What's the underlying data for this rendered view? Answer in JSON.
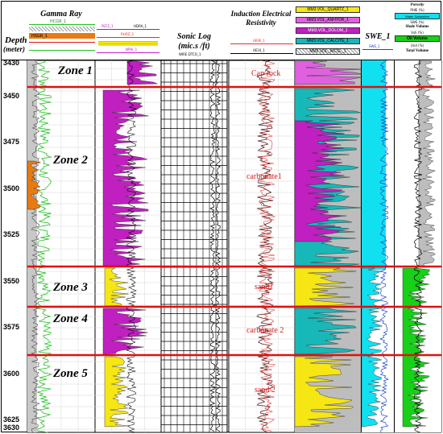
{
  "header": {
    "depth_label": "Depth",
    "depth_unit": "(meter)",
    "gamma_ray_title": "Gamma Ray",
    "sonic_title": "Sonic Log",
    "sonic_unit": "(mic.s /ft)",
    "resistivity_title": "Induction Electrical Resistivity",
    "swe_title": "SWE_1",
    "curve_labels": {
      "hcgr": "HCGR_1",
      "hsgr": "HSGR_1",
      "hdra": "HDRA_1",
      "pefz": "PEFZ_1",
      "rhoz": "RHOZ_1",
      "nphi": "NPHI_1",
      "wire_dtco": "WIRE.DTCO_1",
      "ae90": "AE90_1",
      "ae10": "AE10_1",
      "quartz": "MM3.VOL_QUARTZ_1",
      "anhydr": "MM3.VOL_ANHYDR_1",
      "dolom": "MM3.VOL_DOLOM_1",
      "calcite": "MM3.VOL_CALCITE_1",
      "wcsl": "MM3.VOL_WCSL_1",
      "swe": "SWE_1"
    },
    "volume_legend": {
      "porosity": "Porosity",
      "phie": "PHIE (%)",
      "water_saturation": "Water Saturation",
      "swe": "SWE (%)",
      "shale_volume": "Shale Volume",
      "vsh": "Vsh (%)",
      "oil_volume": "Oil Volume",
      "und": "Und (%)",
      "total_volume": "Total Volume"
    }
  },
  "depth_axis": {
    "ticks": [
      "3430",
      "3450",
      "3475",
      "3500",
      "3525",
      "3550",
      "3575",
      "3600",
      "3625",
      "3630"
    ]
  },
  "zones": [
    {
      "label": "Zone 1"
    },
    {
      "label": "Zone 2"
    },
    {
      "label": "Zone 3"
    },
    {
      "label": "Zone 4"
    },
    {
      "label": "Zone 5"
    }
  ],
  "lithology_labels": [
    {
      "label": "Cap rock"
    },
    {
      "label": "carbonate1"
    },
    {
      "label": "sand1"
    },
    {
      "label": "carbonate 2"
    },
    {
      "label": "sand 2"
    }
  ],
  "colors": {
    "zone_line": "#e01010",
    "gamma_green": "#22c022",
    "gamma_orange": "#e87b10",
    "density_magenta": "#c020c0",
    "density_yellow": "#f5e614",
    "swe_cyan": "#10e0f0",
    "shale_gray": "#bdbdbd",
    "oil_green": "#18d018",
    "resistivity_dark": "#5a2020",
    "resistivity_red": "#e03030"
  }
}
